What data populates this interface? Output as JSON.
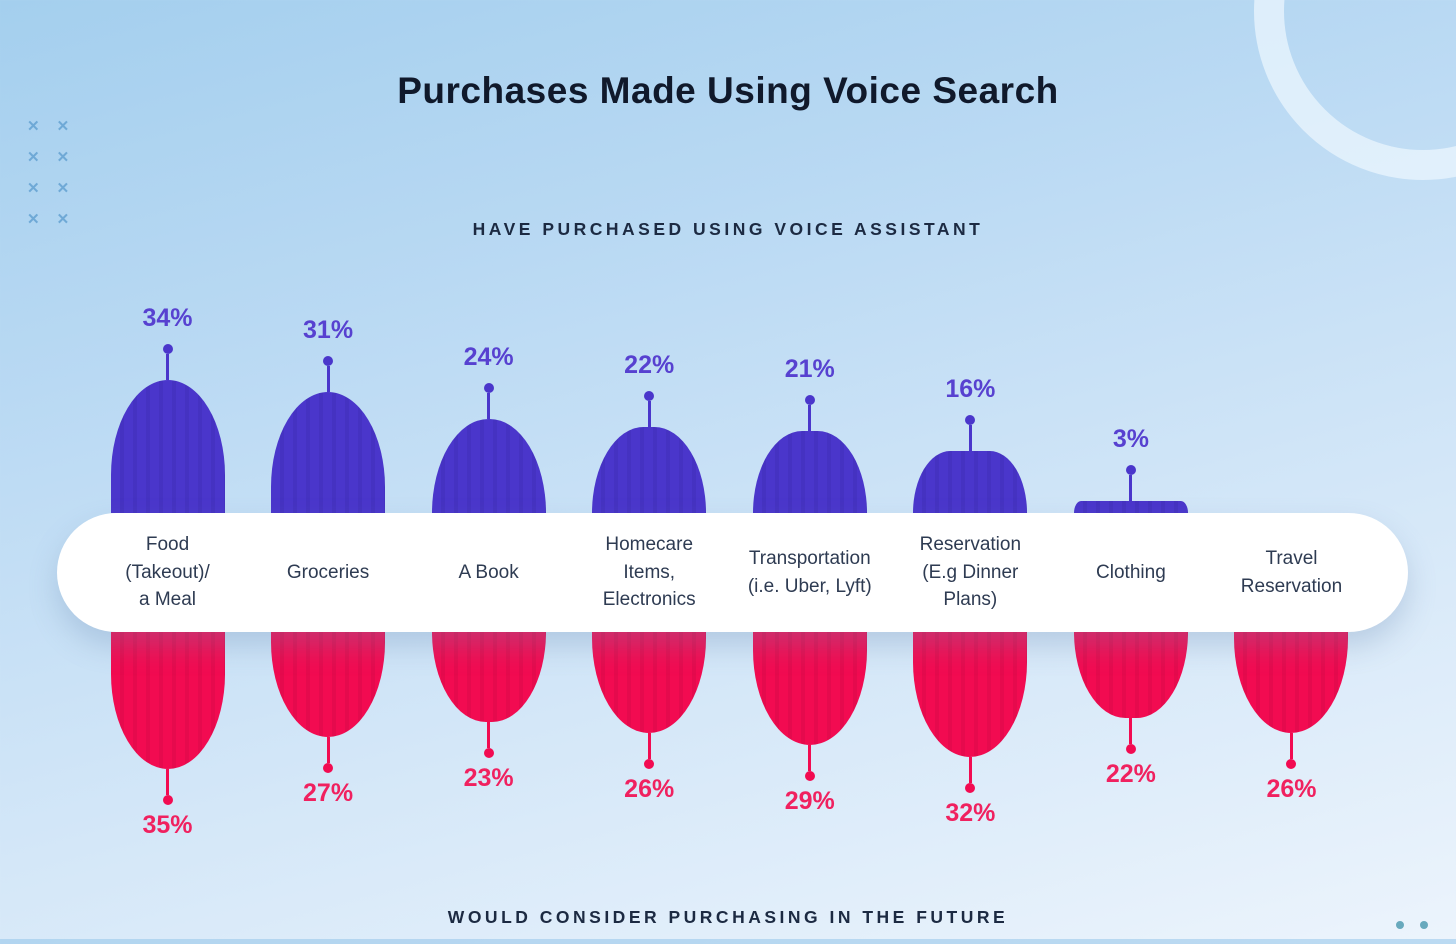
{
  "header": {
    "title": "Purchases Made Using Voice Search"
  },
  "captions": {
    "top": "HAVE PURCHASED USING VOICE ASSISTANT",
    "bottom": "WOULD CONSIDER PURCHASING IN THE FUTURE"
  },
  "colors": {
    "background_top": "#a4cfee",
    "background_bottom": "#ecf4fc",
    "purple_bar": "#4a36cb",
    "pink_bar": "#f20b51",
    "purple_value_label": "#5741d0",
    "pink_value_label": "#f0215f",
    "heading_text": "#10192b",
    "caption_text": "#1c2a42",
    "category_text": "#2e3b52",
    "band_background": "#ffffff",
    "cross_marks": "#6fa9d6",
    "corner_dots": "#68a9bd"
  },
  "decor": {
    "cross_glyph": "✕",
    "cross_pattern": "2x4 grid of crosses, top-left",
    "ring": "large circle outline, top-right",
    "dots": "two teal dots, bottom-right"
  },
  "chart_data": {
    "type": "bar",
    "orientation": "diverging-vertical",
    "title": "Purchases Made Using Voice Search",
    "value_suffix": "%",
    "grid": false,
    "legend_position": "captions above and below chart",
    "categories": [
      "Food (Takeout)/ a Meal",
      "Groceries",
      "A Book",
      "Homecare Items, Electronics",
      "Transportation (i.e. Uber, Lyft)",
      "Reservation (E.g Dinner Plans)",
      "Clothing",
      "Travel Reservation"
    ],
    "category_lines": [
      [
        "Food",
        "(Takeout)/",
        "a Meal"
      ],
      [
        "Groceries"
      ],
      [
        "A Book"
      ],
      [
        "Homecare",
        "Items,",
        "Electronics"
      ],
      [
        "Transportation",
        "(i.e. Uber, Lyft)"
      ],
      [
        "Reservation",
        "(E.g Dinner",
        "Plans)"
      ],
      [
        "Clothing"
      ],
      [
        "Travel",
        "Reservation"
      ]
    ],
    "series": [
      {
        "name": "Have purchased using voice assistant",
        "direction": "up",
        "color": "#4a36cb",
        "values": [
          34,
          31,
          24,
          22,
          21,
          16,
          3,
          null
        ]
      },
      {
        "name": "Would consider purchasing in the future",
        "direction": "down",
        "color": "#f20b51",
        "values": [
          35,
          27,
          23,
          26,
          29,
          32,
          22,
          26
        ]
      }
    ]
  }
}
